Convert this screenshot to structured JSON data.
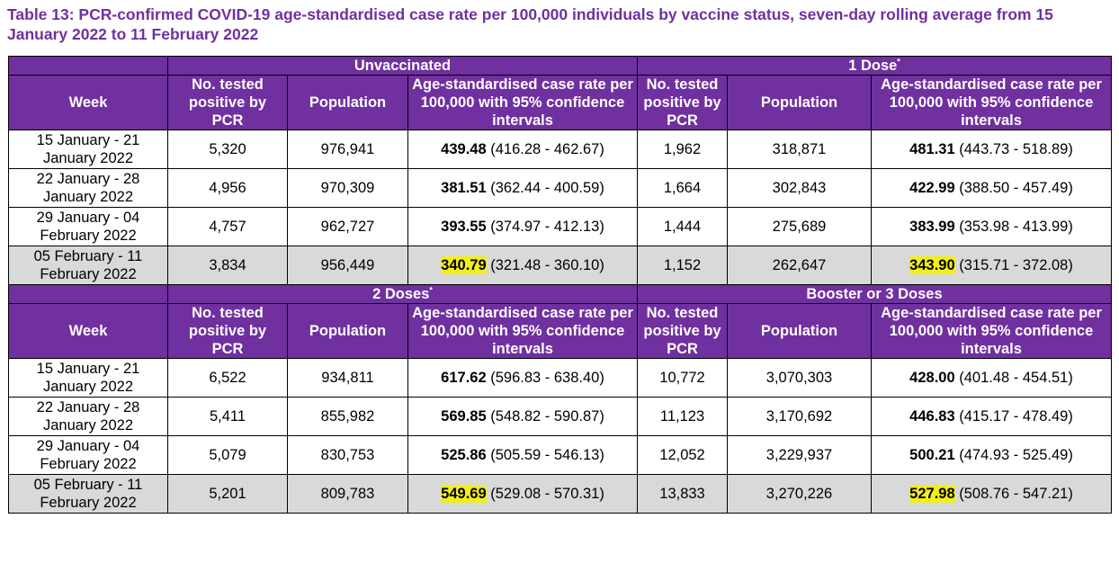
{
  "title": "Table 13: PCR-confirmed COVID-19 age-standardised case rate per 100,000 individuals by vaccine status, seven-day rolling average from 15 January 2022 to 11 February 2022",
  "colors": {
    "header_bg": "#7030a0",
    "title": "#7030a0",
    "highlight": "#f2ee1c",
    "last_row_bg": "#d9d9d9"
  },
  "headers": {
    "week": "Week",
    "tested": "No. tested positive by PCR",
    "population": "Population",
    "rate": "Age-standardised case rate per 100,000 with 95% confidence intervals"
  },
  "footnote_mark": "*",
  "groups": [
    {
      "left": "Unvaccinated",
      "right": "1 Dose",
      "left_mark": "",
      "right_mark": "*"
    },
    {
      "left": "2 Doses",
      "right": "Booster or 3 Doses",
      "left_mark": "*",
      "right_mark": ""
    }
  ],
  "sections": [
    {
      "rows": [
        {
          "week": "15 January - 21 January 2022",
          "l_tested": "5,320",
          "l_pop": "976,941",
          "l_rate": "439.48",
          "l_ci": "(416.28 - 462.67)",
          "r_tested": "1,962",
          "r_pop": "318,871",
          "r_rate": "481.31",
          "r_ci": "(443.73 - 518.89)"
        },
        {
          "week": "22 January - 28 January 2022",
          "l_tested": "4,956",
          "l_pop": "970,309",
          "l_rate": "381.51",
          "l_ci": "(362.44 - 400.59)",
          "r_tested": "1,664",
          "r_pop": "302,843",
          "r_rate": "422.99",
          "r_ci": "(388.50 - 457.49)"
        },
        {
          "week": "29 January - 04 February 2022",
          "l_tested": "4,757",
          "l_pop": "962,727",
          "l_rate": "393.55",
          "l_ci": "(374.97 - 412.13)",
          "r_tested": "1,444",
          "r_pop": "275,689",
          "r_rate": "383.99",
          "r_ci": "(353.98 - 413.99)"
        },
        {
          "week": "05 February - 11 February 2022",
          "l_tested": "3,834",
          "l_pop": "956,449",
          "l_rate": "340.79",
          "l_ci": "(321.48 - 360.10)",
          "r_tested": "1,152",
          "r_pop": "262,647",
          "r_rate": "343.90",
          "r_ci": "(315.71 - 372.08)"
        }
      ]
    },
    {
      "rows": [
        {
          "week": "15 January - 21 January 2022",
          "l_tested": "6,522",
          "l_pop": "934,811",
          "l_rate": "617.62",
          "l_ci": "(596.83 - 638.40)",
          "r_tested": "10,772",
          "r_pop": "3,070,303",
          "r_rate": "428.00",
          "r_ci": "(401.48 - 454.51)"
        },
        {
          "week": "22 January - 28 January 2022",
          "l_tested": "5,411",
          "l_pop": "855,982",
          "l_rate": "569.85",
          "l_ci": "(548.82 - 590.87)",
          "r_tested": "11,123",
          "r_pop": "3,170,692",
          "r_rate": "446.83",
          "r_ci": "(415.17 - 478.49)"
        },
        {
          "week": "29 January - 04 February 2022",
          "l_tested": "5,079",
          "l_pop": "830,753",
          "l_rate": "525.86",
          "l_ci": "(505.59 - 546.13)",
          "r_tested": "12,052",
          "r_pop": "3,229,937",
          "r_rate": "500.21",
          "r_ci": "(474.93 - 525.49)"
        },
        {
          "week": "05 February - 11 February 2022",
          "l_tested": "5,201",
          "l_pop": "809,783",
          "l_rate": "549.69",
          "l_ci": "(529.08 - 570.31)",
          "r_tested": "13,833",
          "r_pop": "3,270,226",
          "r_rate": "527.98",
          "r_ci": "(508.76 - 547.21)"
        }
      ]
    }
  ]
}
